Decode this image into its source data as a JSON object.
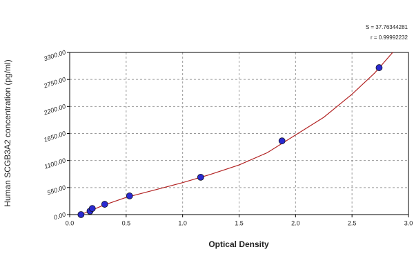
{
  "chart_data": {
    "type": "scatter",
    "x_label": "Optical Density",
    "y_label": "Human SCGB3A2 concentration (pg/ml)",
    "annotations": [
      "S = 37.76344281",
      "r = 0.99992232"
    ],
    "xlim": [
      0,
      3
    ],
    "ylim": [
      0,
      3300
    ],
    "xticks": [
      {
        "value": 0,
        "label": "0.0"
      },
      {
        "value": 0.5,
        "label": "0.5"
      },
      {
        "value": 1,
        "label": "1.0"
      },
      {
        "value": 1.5,
        "label": "1.5"
      },
      {
        "value": 2,
        "label": "2.0"
      },
      {
        "value": 2.5,
        "label": "2.5"
      },
      {
        "value": 3,
        "label": "3.0"
      }
    ],
    "yticks": [
      {
        "value": 0,
        "label": "0.00"
      },
      {
        "value": 550,
        "label": "550.00"
      },
      {
        "value": 1100,
        "label": "1100.00"
      },
      {
        "value": 1650,
        "label": "1650.00"
      },
      {
        "value": 2200,
        "label": "2200.00"
      },
      {
        "value": 2750,
        "label": "2750.00"
      },
      {
        "value": 3300,
        "label": "3300.00"
      }
    ],
    "grid": true,
    "series": [
      {
        "type": "scatter",
        "color": "#2a2ad0",
        "x": [
          0.1,
          0.18,
          0.2,
          0.31,
          0.53,
          1.16,
          1.88,
          2.74
        ],
        "values": [
          0,
          70,
          125,
          210,
          380,
          760,
          1500,
          2990
        ]
      },
      {
        "type": "line",
        "color": "#b22222",
        "x": [
          0.1,
          0.3,
          0.5,
          0.75,
          1.0,
          1.25,
          1.5,
          1.75,
          2.0,
          2.25,
          2.5,
          2.7,
          2.86
        ],
        "values": [
          0,
          190,
          350,
          500,
          650,
          820,
          1010,
          1260,
          1620,
          1980,
          2450,
          2880,
          3300
        ]
      }
    ]
  }
}
